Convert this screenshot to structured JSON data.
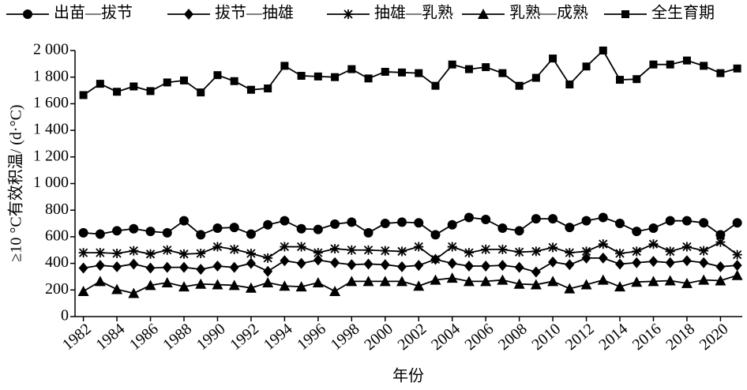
{
  "chart_data": {
    "type": "line",
    "y_label": "≥10 °C有效积温/ (d·°C)",
    "x_label": "年份",
    "x": [
      1982,
      1983,
      1984,
      1985,
      1986,
      1987,
      1988,
      1989,
      1990,
      1991,
      1992,
      1993,
      1994,
      1995,
      1996,
      1997,
      1998,
      1999,
      2000,
      2001,
      2002,
      2003,
      2004,
      2005,
      2006,
      2007,
      2008,
      2009,
      2010,
      2011,
      2012,
      2013,
      2014,
      2015,
      2016,
      2017,
      2018,
      2019,
      2020,
      2021
    ],
    "xlim": [
      1981.5,
      2021.3
    ],
    "xticks": [
      1982,
      1984,
      1986,
      1988,
      1990,
      1992,
      1994,
      1996,
      1998,
      2000,
      2002,
      2004,
      2006,
      2008,
      2010,
      2012,
      2014,
      2016,
      2018,
      2020
    ],
    "ylim": [
      0,
      2000
    ],
    "yticks": [
      0,
      200,
      400,
      600,
      800,
      {
        "value": 1000,
        "label": "1 000"
      },
      {
        "value": 1200,
        "label": "1 200"
      },
      {
        "value": 1400,
        "label": "1 400"
      },
      {
        "value": 1600,
        "label": "1 600"
      },
      {
        "value": 1800,
        "label": "1 800"
      },
      {
        "value": 2000,
        "label": "2 000"
      }
    ],
    "legend_position": "top",
    "series": [
      {
        "name": "出苗—拔节",
        "color": "#000000",
        "marker": "circle",
        "values": [
          630,
          620,
          645,
          660,
          640,
          630,
          720,
          615,
          665,
          670,
          620,
          690,
          720,
          660,
          655,
          695,
          710,
          630,
          700,
          710,
          705,
          615,
          690,
          745,
          730,
          665,
          645,
          735,
          735,
          670,
          720,
          745,
          700,
          640,
          665,
          720,
          720,
          705,
          615,
          705
        ]
      },
      {
        "name": "拔节—抽雄",
        "color": "#000000",
        "marker": "diamond",
        "values": [
          365,
          385,
          375,
          395,
          365,
          370,
          370,
          355,
          380,
          370,
          400,
          340,
          420,
          400,
          425,
          405,
          390,
          395,
          390,
          375,
          385,
          430,
          400,
          380,
          380,
          385,
          370,
          335,
          410,
          390,
          440,
          440,
          395,
          405,
          415,
          405,
          420,
          405,
          375,
          385
        ]
      },
      {
        "name": "抽雄—乳熟",
        "color": "#000000",
        "marker": "asterisk",
        "values": [
          480,
          480,
          475,
          495,
          470,
          500,
          470,
          475,
          525,
          505,
          475,
          440,
          525,
          525,
          480,
          510,
          500,
          500,
          495,
          490,
          525,
          430,
          525,
          480,
          505,
          505,
          485,
          490,
          520,
          480,
          490,
          545,
          475,
          490,
          545,
          490,
          525,
          495,
          560,
          465
        ]
      },
      {
        "name": "乳熟—成熟",
        "color": "#000000",
        "marker": "triangle",
        "values": [
          190,
          265,
          205,
          175,
          235,
          255,
          225,
          245,
          240,
          235,
          215,
          255,
          230,
          225,
          255,
          190,
          265,
          265,
          265,
          265,
          230,
          275,
          290,
          265,
          265,
          275,
          245,
          240,
          265,
          210,
          240,
          275,
          225,
          260,
          265,
          270,
          250,
          275,
          270,
          310
        ]
      },
      {
        "name": "全生育期",
        "color": "#000000",
        "marker": "square",
        "values": [
          1665,
          1750,
          1690,
          1730,
          1695,
          1760,
          1775,
          1685,
          1815,
          1770,
          1705,
          1715,
          1885,
          1810,
          1805,
          1800,
          1860,
          1790,
          1840,
          1835,
          1830,
          1735,
          1895,
          1860,
          1875,
          1830,
          1735,
          1795,
          1940,
          1745,
          1880,
          2000,
          1780,
          1785,
          1895,
          1895,
          1925,
          1885,
          1830,
          1865
        ]
      }
    ]
  }
}
